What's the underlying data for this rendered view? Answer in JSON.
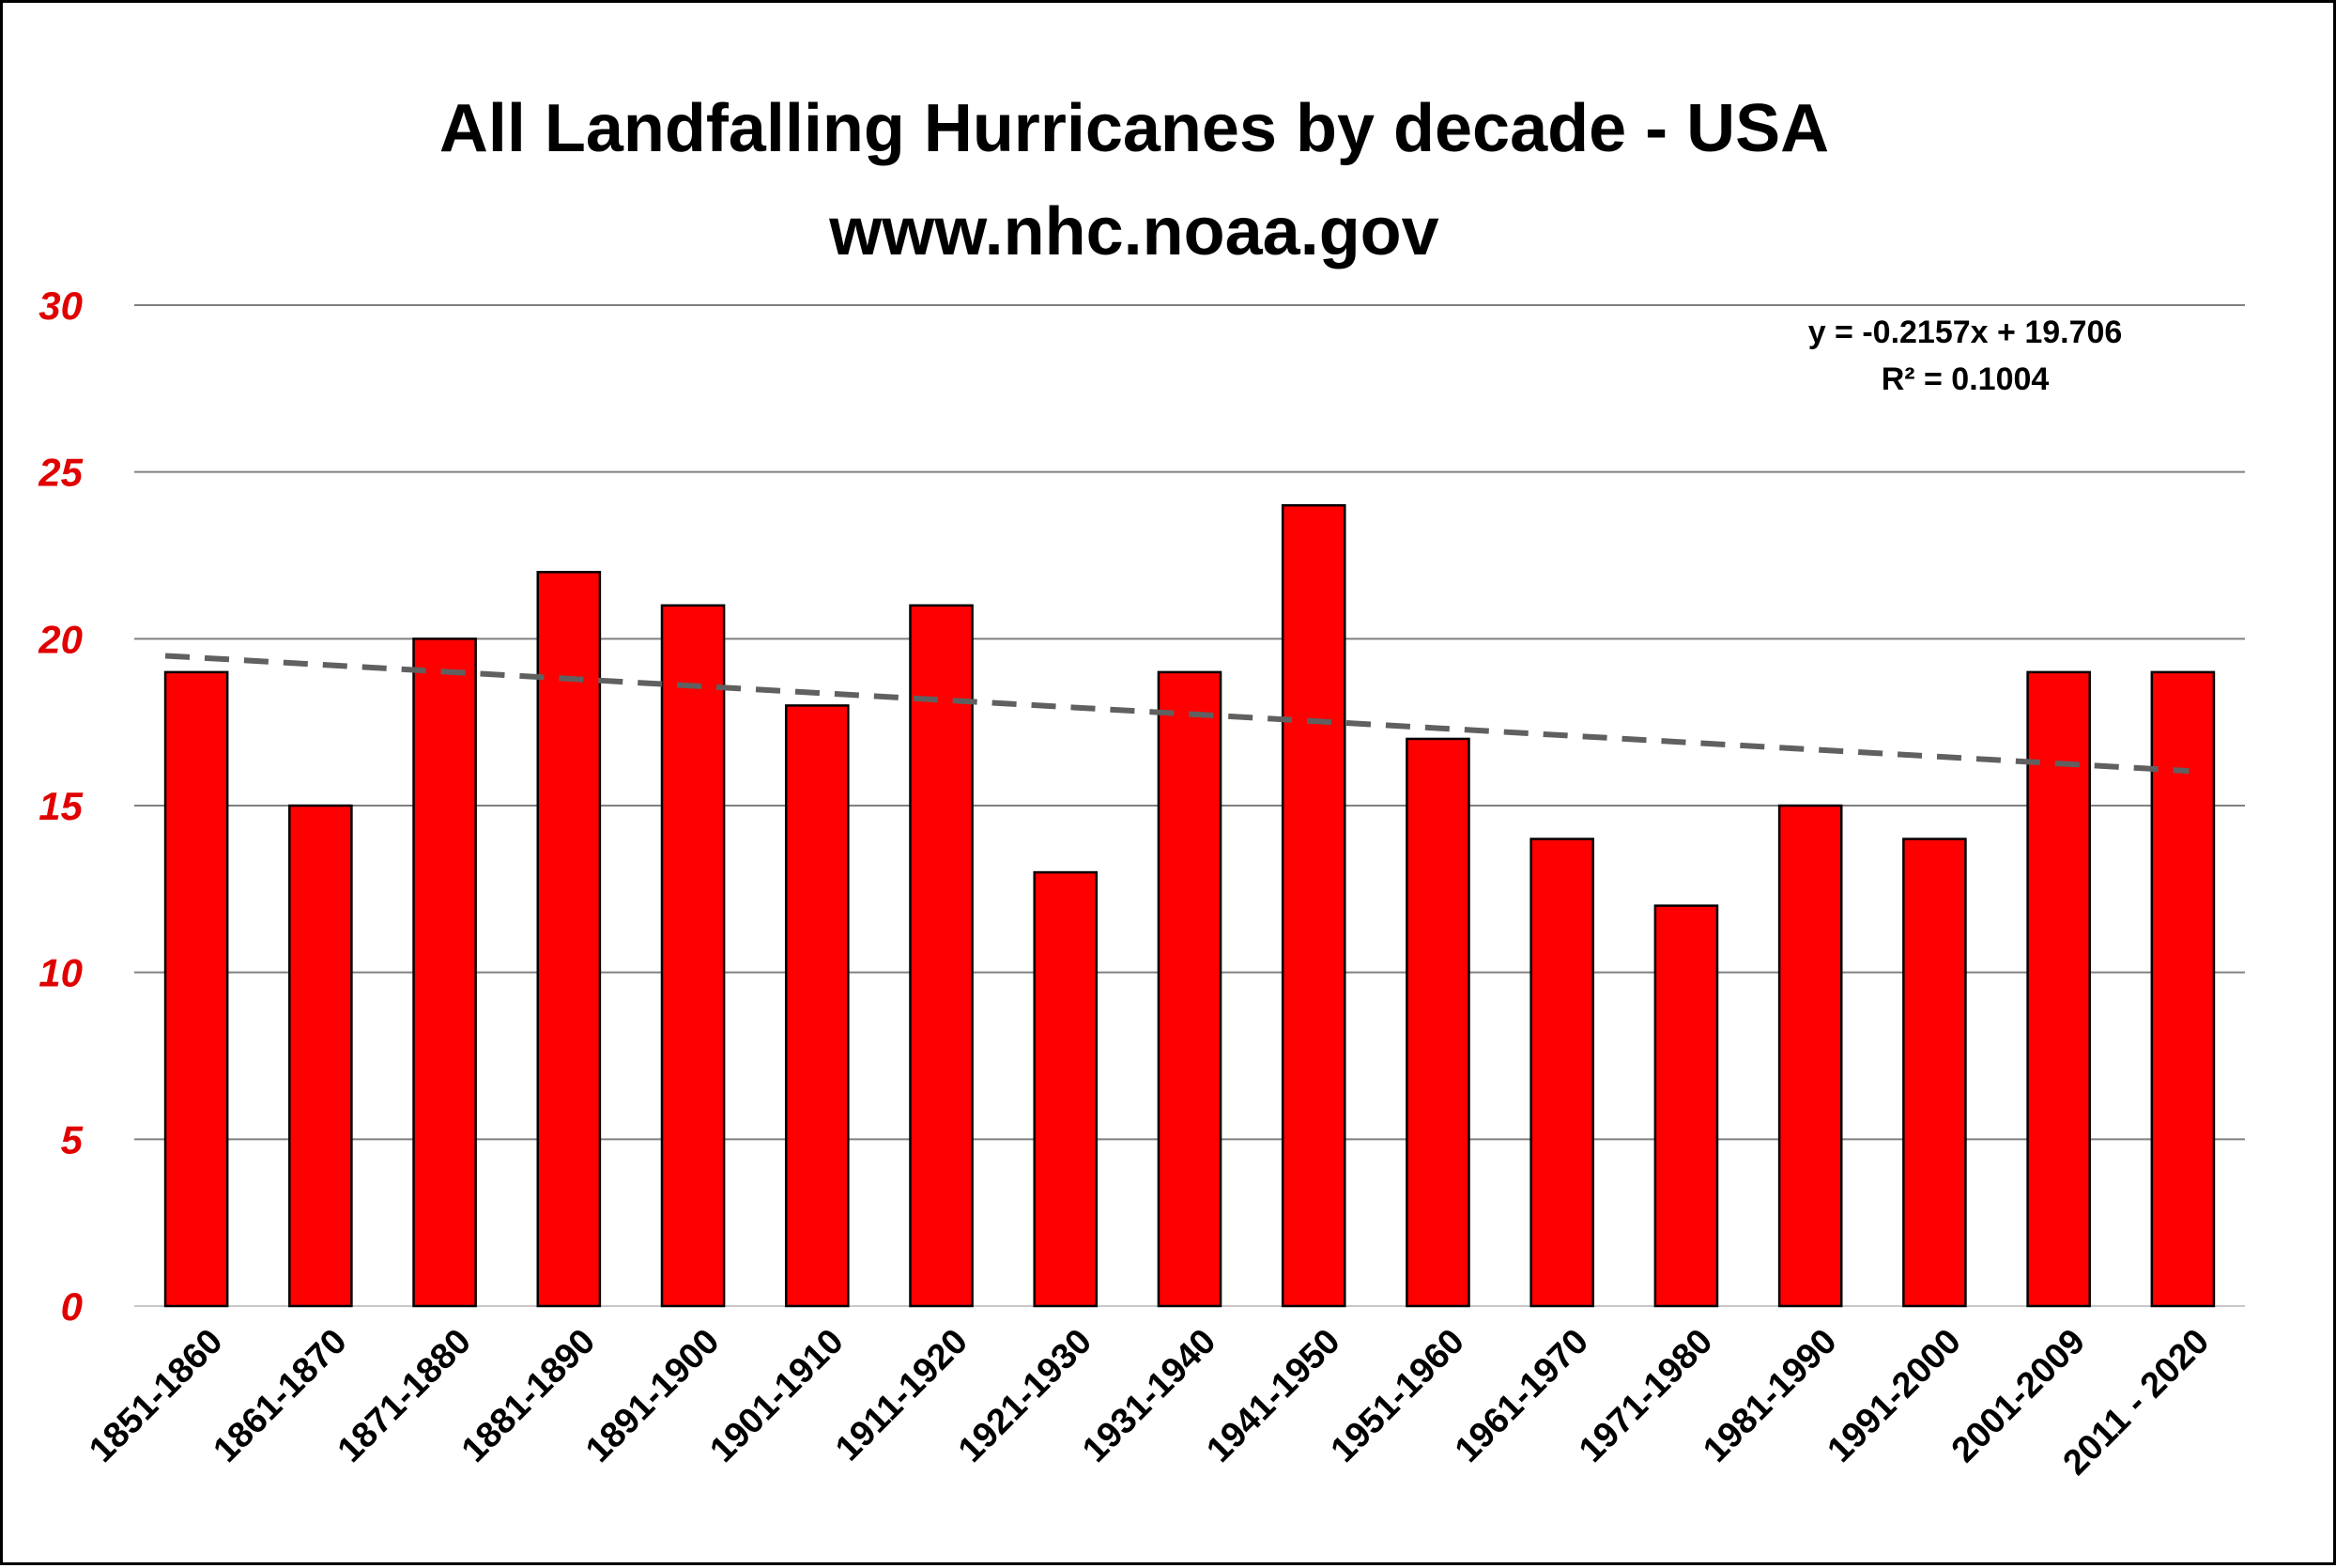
{
  "chart_data": {
    "type": "bar",
    "title": "All Landfalling Hurricanes by decade - USA",
    "subtitle": "www.nhc.noaa.gov",
    "xlabel": "",
    "ylabel": "",
    "ylim": [
      0,
      30
    ],
    "yticks": [
      "0",
      "5",
      "10",
      "15",
      "20",
      "25",
      "30"
    ],
    "grid": true,
    "categories": [
      "1851-1860",
      "1861-1870",
      "1871-1880",
      "1881-1890",
      "1891-1900",
      "1901-1910",
      "1911-1920",
      "1921-1930",
      "1931-1940",
      "1941-1950",
      "1951-1960",
      "1961-1970",
      "1971-1980",
      "1981-1990",
      "1991-2000",
      "2001-2009",
      "2011 - 2020"
    ],
    "values": [
      19,
      15,
      20,
      22,
      21,
      18,
      21,
      13,
      19,
      24,
      17,
      14,
      12,
      15,
      14,
      19,
      19
    ],
    "trendline": {
      "type": "linear",
      "slope": -0.2157,
      "intercept": 19.706,
      "equation": "y = -0.2157x + 19.706",
      "r_squared": "R² = 0.1004"
    }
  },
  "colors": {
    "bar_fill": "#ff0000",
    "bar_stroke": "#000000",
    "ytick": "#e00000",
    "grid": "#808080",
    "trend": "#606060"
  }
}
